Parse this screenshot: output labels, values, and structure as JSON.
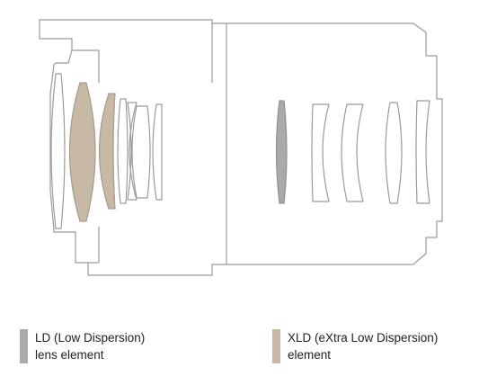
{
  "colors": {
    "ld": "#a9abaa",
    "xld": "#c8b8a6",
    "outline": "#9a9a9a",
    "text": "#222222"
  },
  "legend": {
    "ld": {
      "line1": "LD (Low Dispersion)",
      "line2": "lens element"
    },
    "xld": {
      "line1": "XLD (eXtra Low Dispersion)",
      "line2": "element"
    }
  }
}
